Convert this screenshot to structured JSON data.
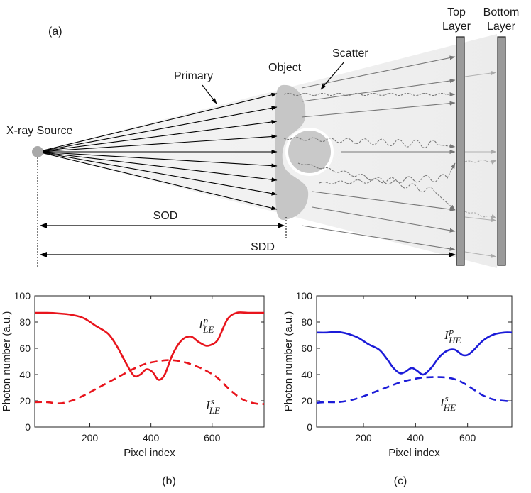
{
  "panel_a": {
    "panel_label": "(a)",
    "source_label": "X-ray Source",
    "primary_label": "Primary",
    "object_label": "Object",
    "scatter_label": "Scatter",
    "top_layer_line1": "Top",
    "top_layer_line2": "Layer",
    "bottom_layer_line1": "Bottom",
    "bottom_layer_line2": "Layer",
    "sod_label": "SOD",
    "sdd_label": "SDD"
  },
  "panel_b_label": "(b)",
  "panel_c_label": "(c)",
  "colors": {
    "le": "#e8141c",
    "he": "#1b1bd8",
    "gray": "#9a9a9a"
  },
  "chart_data": [
    {
      "type": "line",
      "ylabel": "Photon number (a.u.)",
      "xlabel": "Pixel index",
      "xlim": [
        20,
        770
      ],
      "ylim": [
        0,
        100
      ],
      "xticks": [
        200,
        400,
        600
      ],
      "yticks": [
        0,
        20,
        40,
        60,
        80,
        100
      ],
      "series": [
        {
          "name": "primary",
          "label": {
            "base": "I",
            "sup": "p",
            "sub": "LE"
          },
          "style": "solid",
          "x": [
            20,
            60,
            100,
            140,
            180,
            220,
            260,
            290,
            320,
            345,
            365,
            385,
            405,
            425,
            445,
            470,
            500,
            530,
            555,
            580,
            600,
            620,
            650,
            680,
            720,
            770
          ],
          "y": [
            87,
            87,
            86.5,
            85.5,
            83,
            77,
            71,
            61,
            48,
            39,
            40,
            44,
            42,
            36,
            40,
            55,
            66,
            69,
            65,
            62,
            63,
            67,
            82,
            87,
            87,
            87
          ]
        },
        {
          "name": "scatter",
          "label": {
            "base": "I",
            "sup": "s",
            "sub": "LE"
          },
          "style": "dashed",
          "x": [
            20,
            60,
            100,
            140,
            180,
            220,
            260,
            300,
            340,
            380,
            420,
            460,
            500,
            540,
            580,
            620,
            660,
            700,
            740,
            770
          ],
          "y": [
            19,
            19,
            18,
            20,
            24,
            29,
            34,
            39,
            44,
            48,
            50,
            51,
            50,
            47,
            43,
            37,
            28,
            21,
            18,
            17.5
          ]
        }
      ]
    },
    {
      "type": "line",
      "ylabel": "Photon number (a.u.)",
      "xlabel": "Pixel index",
      "xlim": [
        20,
        770
      ],
      "ylim": [
        0,
        100
      ],
      "xticks": [
        200,
        400,
        600
      ],
      "yticks": [
        0,
        20,
        40,
        60,
        80,
        100
      ],
      "series": [
        {
          "name": "primary",
          "label": {
            "base": "I",
            "sup": "p",
            "sub": "HE"
          },
          "style": "solid",
          "x": [
            20,
            60,
            100,
            140,
            180,
            220,
            260,
            290,
            315,
            340,
            360,
            385,
            405,
            430,
            460,
            490,
            520,
            550,
            580,
            600,
            620,
            660,
            700,
            740,
            770
          ],
          "y": [
            72,
            72,
            72.5,
            71,
            68,
            63,
            59,
            52,
            45,
            41,
            42,
            45,
            43,
            40,
            45,
            53,
            58,
            59,
            55,
            55,
            58,
            66,
            70.5,
            72,
            72
          ]
        },
        {
          "name": "scatter",
          "label": {
            "base": "I",
            "sup": "s",
            "sub": "HE"
          },
          "style": "dashed",
          "x": [
            20,
            60,
            100,
            140,
            180,
            220,
            260,
            300,
            340,
            380,
            420,
            460,
            500,
            540,
            580,
            620,
            660,
            700,
            740,
            770
          ],
          "y": [
            18.5,
            19,
            19,
            20,
            22,
            25,
            28,
            31,
            34,
            36,
            37.5,
            38,
            38,
            37,
            34,
            29,
            24,
            21,
            20,
            19.5
          ]
        }
      ]
    }
  ]
}
